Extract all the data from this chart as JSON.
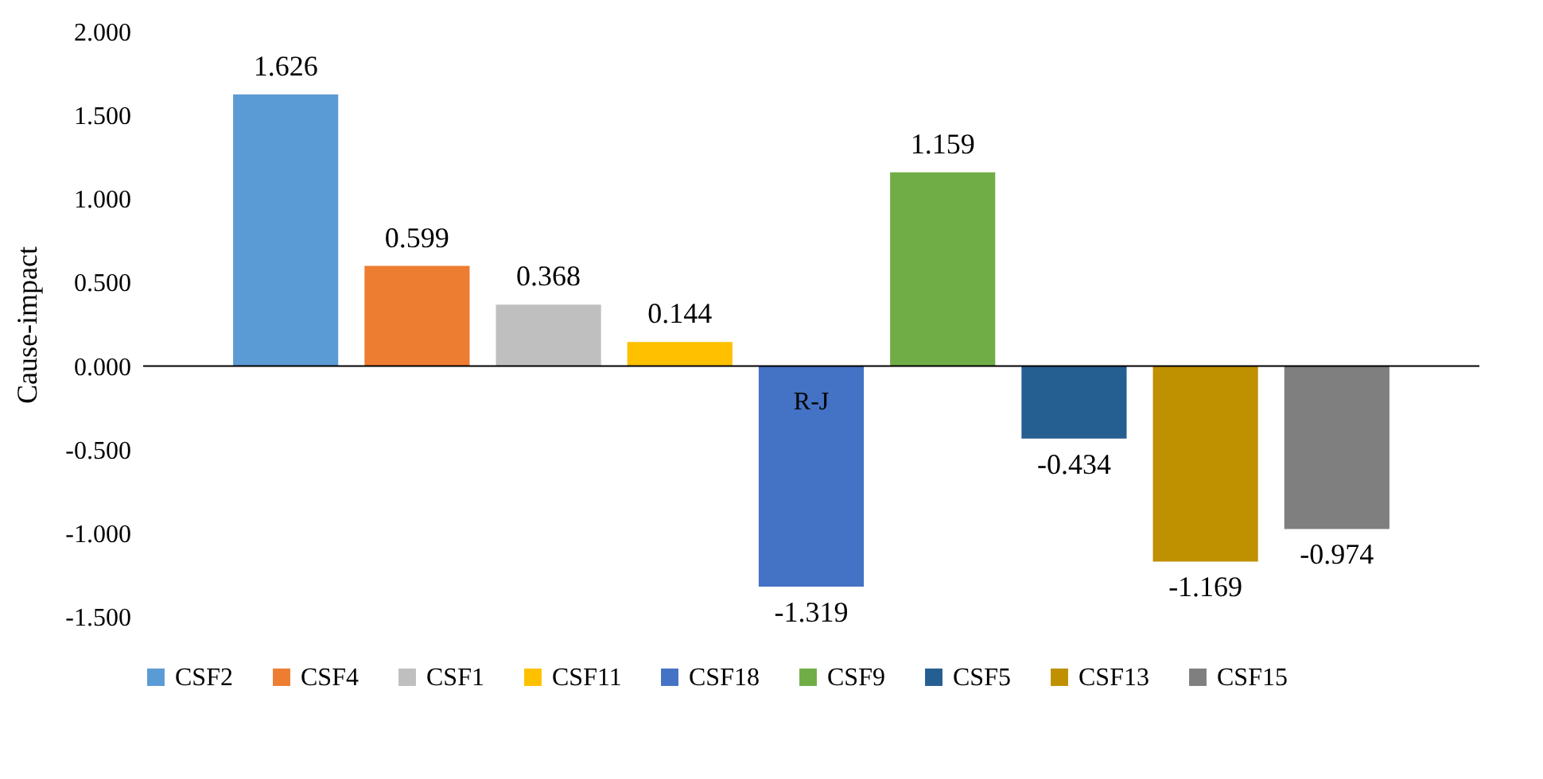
{
  "chart_data": {
    "type": "bar",
    "ylabel": "Cause-impact",
    "categories": [
      null
    ],
    "series": [
      {
        "name": "CSF2",
        "color": "#5b9bd5",
        "values": [
          1.626
        ]
      },
      {
        "name": "CSF4",
        "color": "#ed7d31",
        "values": [
          0.599
        ]
      },
      {
        "name": "CSF1",
        "color": "#bfbfbf",
        "values": [
          0.368
        ]
      },
      {
        "name": "CSF11",
        "color": "#ffc000",
        "values": [
          0.144
        ]
      },
      {
        "name": "CSF18",
        "color": "#4472c4",
        "values": [
          -1.319
        ]
      },
      {
        "name": "CSF9",
        "color": "#70ad47",
        "values": [
          1.159
        ]
      },
      {
        "name": "CSF5",
        "color": "#255e91",
        "values": [
          -0.434
        ]
      },
      {
        "name": "CSF13",
        "color": "#bf9000",
        "values": [
          -1.169
        ]
      },
      {
        "name": "CSF15",
        "color": "#7f7f7f",
        "values": [
          -0.974
        ]
      }
    ],
    "ylim": [
      -1.5,
      2
    ],
    "yticks": [
      {
        "value": -1.5,
        "label": "-1.500"
      },
      {
        "value": -1,
        "label": "-1.000"
      },
      {
        "value": -0.5,
        "label": "-0.500"
      },
      {
        "value": 0,
        "label": "0.000"
      },
      {
        "value": 0.5,
        "label": "0.500"
      },
      {
        "value": 1,
        "label": "1.000"
      },
      {
        "value": 1.5,
        "label": "1.500"
      },
      {
        "value": 2,
        "label": "2.000"
      }
    ],
    "grid": false,
    "legend": "bottom",
    "data_labels": true,
    "ref_lines": [
      {
        "axis": "y",
        "value": 0,
        "color": "#000000"
      }
    ],
    "annotations": [
      "R-J"
    ]
  }
}
